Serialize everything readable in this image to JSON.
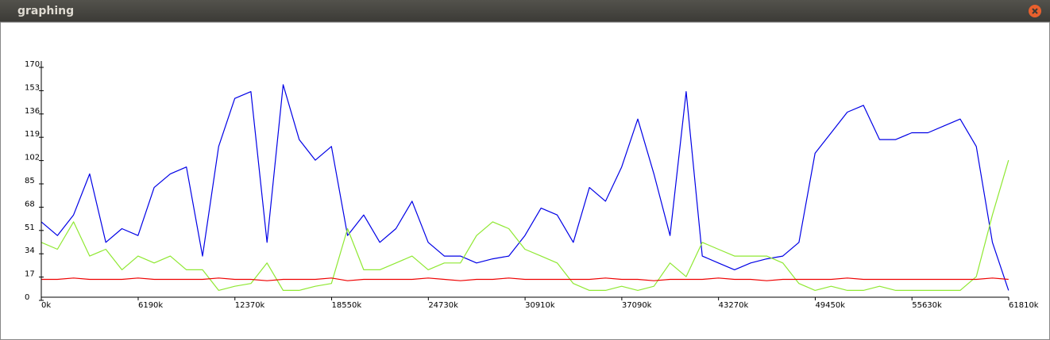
{
  "chart_data": {
    "type": "line",
    "title": "graphing",
    "x": [
      0,
      1030,
      2060,
      3090,
      4120,
      5150,
      6180,
      7210,
      8240,
      9270,
      10300,
      11330,
      12360,
      13390,
      14420,
      15450,
      16480,
      17510,
      18540,
      19570,
      20600,
      21630,
      22660,
      23690,
      24720,
      25750,
      26780,
      27810,
      28840,
      29870,
      30900,
      31930,
      32960,
      33990,
      35020,
      36050,
      37080,
      38110,
      39140,
      40170,
      41200,
      42230,
      43260,
      44290,
      45320,
      46350,
      47380,
      48410,
      49440,
      50470,
      51500,
      52530,
      53560,
      54590,
      55620,
      56650,
      57680,
      58710,
      59740,
      60770,
      61800
    ],
    "series": [
      {
        "color": "#0000e6",
        "values": [
          55,
          45,
          60,
          90,
          40,
          50,
          45,
          80,
          90,
          95,
          30,
          110,
          145,
          150,
          40,
          155,
          115,
          100,
          110,
          45,
          60,
          40,
          50,
          70,
          40,
          30,
          30,
          25,
          28,
          30,
          45,
          65,
          60,
          40,
          80,
          70,
          95,
          130,
          90,
          45,
          150,
          30,
          25,
          20,
          25,
          28,
          30,
          40,
          105,
          120,
          135,
          140,
          115,
          115,
          120,
          120,
          125,
          130,
          110,
          40,
          5
        ]
      },
      {
        "color": "#8fe832",
        "values": [
          40,
          35,
          55,
          30,
          35,
          20,
          30,
          25,
          30,
          20,
          20,
          5,
          8,
          10,
          25,
          5,
          5,
          8,
          10,
          50,
          20,
          20,
          25,
          30,
          20,
          25,
          25,
          45,
          55,
          50,
          35,
          30,
          25,
          10,
          5,
          5,
          8,
          5,
          8,
          25,
          15,
          40,
          35,
          30,
          30,
          30,
          25,
          10,
          5,
          8,
          5,
          5,
          8,
          5,
          5,
          5,
          5,
          5,
          15,
          60,
          100
        ]
      },
      {
        "color": "#ee0000",
        "values": [
          13,
          13,
          14,
          13,
          13,
          13,
          14,
          13,
          13,
          13,
          13,
          14,
          13,
          13,
          12,
          13,
          13,
          13,
          14,
          12,
          13,
          13,
          13,
          13,
          14,
          13,
          12,
          13,
          13,
          14,
          13,
          13,
          13,
          13,
          13,
          14,
          13,
          13,
          12,
          13,
          13,
          13,
          14,
          13,
          13,
          12,
          13,
          13,
          13,
          13,
          14,
          13,
          13,
          13,
          13,
          13,
          13,
          13,
          13,
          14,
          13
        ]
      }
    ],
    "xlim": [
      0,
      61810
    ],
    "ylim": [
      0,
      170
    ],
    "xticks": [
      {
        "value": 0,
        "label": "0k"
      },
      {
        "value": 6190,
        "label": "6190k"
      },
      {
        "value": 12370,
        "label": "12370k"
      },
      {
        "value": 18550,
        "label": "18550k"
      },
      {
        "value": 24730,
        "label": "24730k"
      },
      {
        "value": 30910,
        "label": "30910k"
      },
      {
        "value": 37090,
        "label": "37090k"
      },
      {
        "value": 43270,
        "label": "43270k"
      },
      {
        "value": 49450,
        "label": "49450k"
      },
      {
        "value": 55630,
        "label": "55630k"
      },
      {
        "value": 61810,
        "label": "61810k"
      }
    ],
    "yticks": [
      0,
      17,
      34,
      51,
      68,
      85,
      102,
      119,
      136,
      153,
      170
    ],
    "grid": false
  }
}
